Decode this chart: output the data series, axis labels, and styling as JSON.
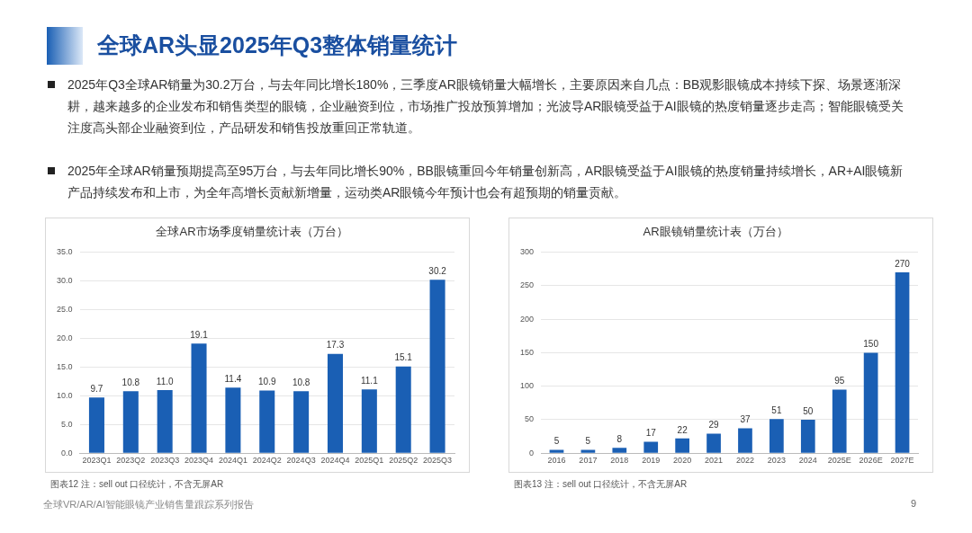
{
  "chart_data": [
    {
      "type": "other",
      "title": "全球AR头显2025年Q3整体销量统计",
      "annotations": [
        "2025年Q3全球AR销量为30.2万台，与去年同比增长180%，三季度AR眼镜销量大幅增长，主要原因来自几点：BB观影眼镜成本持续下探、场景逐渐深耕，越来越多的企业发布和销售类型的眼镜，企业融资到位，市场推广投放预算增加；光波导AR眼镜受益于AI眼镜的热度销量逐步走高；智能眼镜受关注度高头部企业融资到位，产品研发和销售投放重回正常轨道。",
        "2025年全球AR销量预期提高至95万台，与去年同比增长90%，BB眼镜重回今年销量创新高，AR眼镜受益于AI眼镜的热度销量持续增长，AR+AI眼镜新产品持续发布和上市，为全年高增长贡献新增量，运动类AR眼镜今年预计也会有超预期的销量贡献。",
        "全球VR/AR/AI智能眼镜产业销售量跟踪系列报告",
        "9"
      ]
    },
    {
      "type": "bar",
      "title": "全球AR市场季度销量统计表（万台）",
      "categories": [
        "2023Q1",
        "2023Q2",
        "2023Q3",
        "2023Q4",
        "2024Q1",
        "2024Q2",
        "2024Q3",
        "2024Q4",
        "2025Q1",
        "2025Q2",
        "2025Q3"
      ],
      "values": [
        9.7,
        10.8,
        11.0,
        19.1,
        11.4,
        10.9,
        10.8,
        17.3,
        11.1,
        15.1,
        30.2
      ],
      "color": "#1a5fb4",
      "value_labels": [
        "9.7",
        "10.8",
        "11.0",
        "19.1",
        "11.4",
        "10.9",
        "10.8",
        "17.3",
        "11.1",
        "15.1",
        "30.2"
      ],
      "grid": "y",
      "ylim": [
        0,
        35
      ],
      "yticks": [
        {
          "value": 0,
          "label": "0.0"
        },
        {
          "value": 5,
          "label": "5.0"
        },
        {
          "value": 10,
          "label": "10.0"
        },
        {
          "value": 15,
          "label": "15.0"
        },
        {
          "value": 20,
          "label": "20.0"
        },
        {
          "value": 25,
          "label": "25.0"
        },
        {
          "value": 30,
          "label": "30.0"
        },
        {
          "value": 35,
          "label": "35.0"
        }
      ],
      "annotations": [
        "图表12 注：sell out 口径统计，不含无屏AR"
      ]
    },
    {
      "type": "bar",
      "title": "AR眼镜销量统计表（万台）",
      "categories": [
        "2016",
        "2017",
        "2018",
        "2019",
        "2020",
        "2021",
        "2022",
        "2023",
        "2024",
        "2025E",
        "2026E",
        "2027E"
      ],
      "values": [
        5,
        5,
        8,
        17,
        22,
        29,
        37,
        51,
        50,
        95,
        150,
        270
      ],
      "color": "#1a5fb4",
      "data_labels": true,
      "grid": "y",
      "ylim": [
        0,
        300
      ],
      "yticks": [
        0,
        50,
        100,
        150,
        200,
        250,
        300
      ],
      "annotations": [
        "图表13 注：sell out 口径统计，不含无屏AR"
      ]
    }
  ]
}
